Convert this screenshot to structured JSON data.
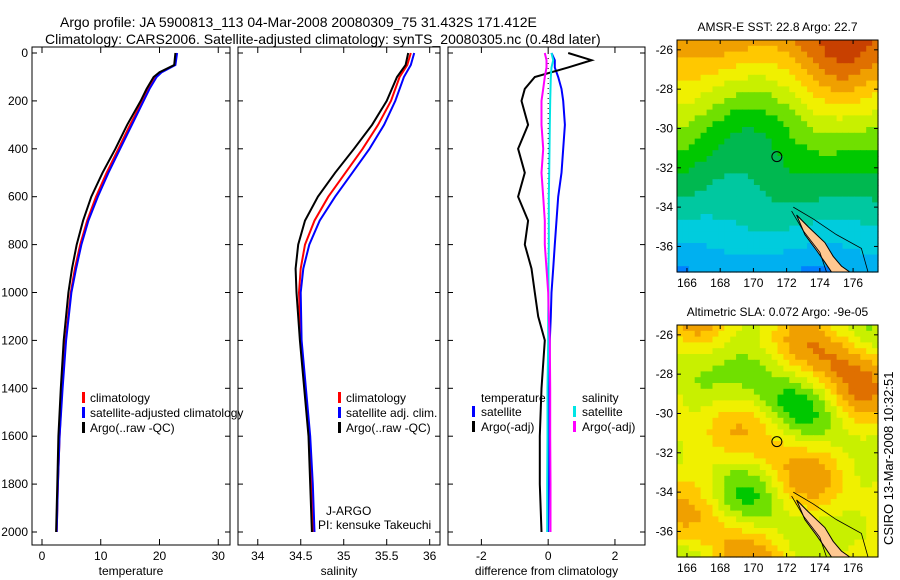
{
  "title_line1": "Argo profile: JA 5900813_113 04-Mar-2008 20080309_75 31.432S 171.412E",
  "title_line2": "Climatology: CARS2006. Satellite-adjusted climatology: synTS_20080305.nc (0.48d later)",
  "side_stamp": "CSIRO 13-Mar-2008 10:32:51",
  "chart_data": [
    {
      "type": "line",
      "id": "temp",
      "xlabel": "temperature",
      "ylabel": "",
      "xlim": [
        -1.7,
        32
      ],
      "ylim": [
        2050,
        0
      ],
      "xticks": [
        0,
        10,
        20,
        30
      ],
      "yticks": [
        0,
        200,
        400,
        600,
        800,
        1000,
        1200,
        1400,
        1600,
        1800,
        2000
      ],
      "depth": [
        0,
        50,
        80,
        100,
        150,
        200,
        300,
        400,
        500,
        600,
        700,
        800,
        900,
        1000,
        1200,
        1400,
        1600,
        1800,
        2000
      ],
      "series": [
        {
          "name": "climatology",
          "color": "#ff0000",
          "values": [
            22.9,
            22.6,
            20.2,
            19.3,
            18.1,
            17.1,
            15.0,
            13.0,
            11.0,
            9.2,
            7.7,
            6.5,
            5.6,
            4.9,
            4.0,
            3.4,
            3.0,
            2.7,
            2.5
          ]
        },
        {
          "name": "satellite-adjusted climatology",
          "color": "#0000ff",
          "values": [
            23.0,
            22.7,
            20.4,
            19.5,
            18.3,
            17.3,
            15.3,
            13.3,
            11.3,
            9.5,
            7.9,
            6.7,
            5.8,
            5.0,
            4.1,
            3.5,
            3.0,
            2.7,
            2.5
          ]
        },
        {
          "name": "Argo(..raw -QC)",
          "color": "#000000",
          "values": [
            22.7,
            22.5,
            20.0,
            19.0,
            17.8,
            16.8,
            14.5,
            12.5,
            10.3,
            8.4,
            7.0,
            5.9,
            5.1,
            4.5,
            3.7,
            3.2,
            2.8,
            2.6,
            2.4
          ]
        }
      ],
      "legend": [
        "climatology",
        "satellite-adjusted climatology",
        "Argo(..raw -QC)"
      ]
    },
    {
      "type": "line",
      "id": "sal",
      "xlabel": "salinity",
      "xlim": [
        33.77,
        36.12
      ],
      "ylim": [
        2050,
        0
      ],
      "xticks": [
        34,
        34.5,
        35,
        35.5,
        36
      ],
      "depth": [
        0,
        50,
        100,
        200,
        300,
        400,
        500,
        600,
        700,
        800,
        900,
        1000,
        1200,
        1400,
        1600,
        1800,
        2000
      ],
      "series": [
        {
          "name": "climatology",
          "color": "#ff0000",
          "values": [
            35.78,
            35.74,
            35.65,
            35.55,
            35.4,
            35.22,
            35.02,
            34.82,
            34.66,
            34.55,
            34.5,
            34.48,
            34.5,
            34.55,
            34.6,
            34.62,
            34.64
          ]
        },
        {
          "name": "satellite adj. clim.",
          "color": "#0000ff",
          "values": [
            35.82,
            35.78,
            35.7,
            35.6,
            35.47,
            35.3,
            35.1,
            34.9,
            34.72,
            34.6,
            34.53,
            34.5,
            34.51,
            34.56,
            34.61,
            34.64,
            34.66
          ]
        },
        {
          "name": "Argo(..raw -QC)",
          "color": "#000000",
          "values": [
            35.75,
            35.72,
            35.62,
            35.5,
            35.33,
            35.12,
            34.9,
            34.7,
            34.55,
            34.47,
            34.44,
            34.45,
            34.49,
            34.54,
            34.59,
            34.61,
            34.63
          ]
        }
      ],
      "legend": [
        "climatology",
        "satellite adj. clim.",
        "Argo(..raw -QC)"
      ],
      "annotations": [
        "J-ARGO",
        "PI: kensuke Takeuchi"
      ]
    },
    {
      "type": "line",
      "id": "diff",
      "xlabel": "difference from climatology",
      "xlim": [
        -3,
        2.9
      ],
      "ylim": [
        2050,
        0
      ],
      "xticks": [
        -2,
        0,
        2
      ],
      "depth": [
        0,
        30,
        60,
        100,
        150,
        200,
        300,
        400,
        500,
        600,
        700,
        800,
        900,
        1000,
        1100,
        1200,
        1400,
        1600,
        1800,
        2000
      ],
      "series": [
        {
          "name": "temperature satellite",
          "color": "#0000ff",
          "values": [
            0.1,
            0.2,
            0.2,
            0.3,
            0.4,
            0.45,
            0.5,
            0.45,
            0.4,
            0.3,
            0.25,
            0.2,
            0.15,
            0.1,
            0.08,
            0.05,
            0.03,
            0.02,
            0.01,
            0.0
          ]
        },
        {
          "name": "temperature Argo(-adj)",
          "color": "#000000",
          "values": [
            0.6,
            1.3,
            0.6,
            -0.4,
            -0.7,
            -0.8,
            -0.6,
            -0.9,
            -0.7,
            -0.9,
            -0.6,
            -0.7,
            -0.5,
            -0.4,
            -0.3,
            -0.1,
            -0.2,
            -0.25,
            -0.25,
            -0.2
          ]
        },
        {
          "name": "salinity satellite",
          "color": "#00e5e5",
          "values": [
            0.1,
            0.15,
            0.1,
            0.08,
            0.07,
            0.06,
            0.05,
            0.04,
            0.03,
            0.02,
            0.02,
            0.02,
            0.01,
            0.01,
            0.0,
            0.0,
            -0.02,
            -0.02,
            -0.03,
            -0.03
          ]
        },
        {
          "name": "salinity Argo(-adj)",
          "color": "#ff00ff",
          "values": [
            -0.1,
            -0.05,
            -0.05,
            -0.1,
            -0.15,
            -0.2,
            -0.2,
            -0.15,
            -0.2,
            -0.15,
            -0.1,
            -0.1,
            -0.05,
            0.0,
            0.02,
            0.05,
            0.06,
            0.06,
            0.07,
            0.07
          ]
        }
      ],
      "legend_headers": [
        "temperature",
        "salinity"
      ],
      "legend": [
        "satellite",
        "Argo(-adj)",
        "satellite",
        "Argo(-adj)"
      ]
    },
    {
      "type": "heatmap",
      "id": "sst",
      "title": "AMSR-E SST: 22.8 Argo: 22.7",
      "xlim": [
        165.4,
        177.5
      ],
      "ylim": [
        -37.3,
        -25.5
      ],
      "xticks": [
        166,
        168,
        170,
        172,
        174,
        176
      ],
      "yticks": [
        -26,
        -28,
        -30,
        -32,
        -34,
        -36
      ],
      "float_position": {
        "lon": 171.412,
        "lat": -31.432
      }
    },
    {
      "type": "heatmap",
      "id": "sla",
      "title": "Altimetric SLA: 0.072 Argo: -9e-05",
      "xlim": [
        165.4,
        177.5
      ],
      "ylim": [
        -37.3,
        -25.5
      ],
      "xticks": [
        166,
        168,
        170,
        172,
        174,
        176
      ],
      "yticks": [
        -26,
        -28,
        -30,
        -32,
        -34,
        -36
      ],
      "float_position": {
        "lon": 171.412,
        "lat": -31.432
      }
    }
  ]
}
